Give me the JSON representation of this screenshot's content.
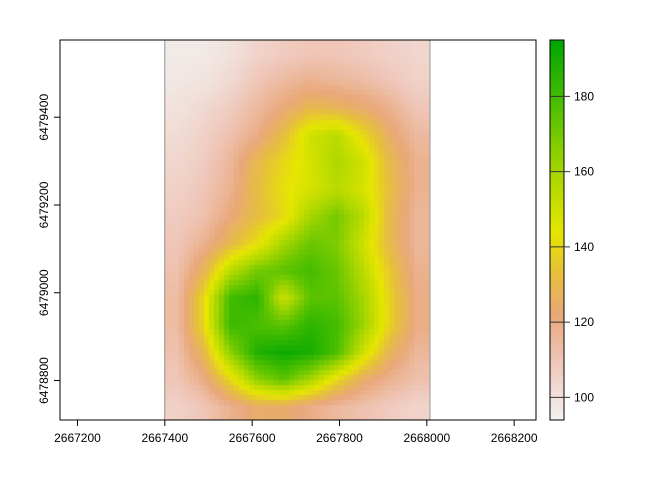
{
  "chart_data": {
    "type": "heatmap",
    "title": "",
    "xlabel": "",
    "ylabel": "",
    "xlim": [
      2667160,
      2668250
    ],
    "ylim": [
      6478710,
      6479576
    ],
    "raster_extent": {
      "xmin": 2667400,
      "xmax": 2668010,
      "ymin": 6478710,
      "ymax": 6479576
    },
    "x_ticks": [
      2667200,
      2667400,
      2667600,
      2667800,
      2668000,
      2668200
    ],
    "x_tick_labels": [
      "2667200",
      "2667400",
      "2667600",
      "2667800",
      "2668000",
      "2668200"
    ],
    "y_ticks": [
      6478800,
      6479000,
      6479200,
      6479400
    ],
    "y_tick_labels": [
      "6478800",
      "6479000",
      "6479200",
      "6479400"
    ],
    "legend": {
      "placement": "right",
      "range": [
        94,
        195
      ],
      "ticks": [
        100,
        120,
        140,
        160,
        180
      ],
      "tick_labels": [
        "100",
        "120",
        "140",
        "160",
        "180"
      ]
    },
    "color_stops": [
      {
        "value": 94,
        "color": "#f2f2f2"
      },
      {
        "value": 110,
        "color": "#efc6b8"
      },
      {
        "value": 122,
        "color": "#e9a87a"
      },
      {
        "value": 133,
        "color": "#e6bf3c"
      },
      {
        "value": 144,
        "color": "#e6e600"
      },
      {
        "value": 160,
        "color": "#a6d600"
      },
      {
        "value": 178,
        "color": "#4cbf00"
      },
      {
        "value": 195,
        "color": "#00a600"
      }
    ],
    "z_rows_top_to_bottom": [
      [
        97,
        97,
        100,
        105,
        108,
        110,
        110,
        108,
        106,
        104
      ],
      [
        98,
        99,
        103,
        110,
        115,
        118,
        116,
        114,
        110,
        106
      ],
      [
        100,
        103,
        108,
        115,
        122,
        130,
        128,
        124,
        118,
        110
      ],
      [
        102,
        106,
        112,
        120,
        132,
        150,
        155,
        140,
        125,
        115
      ],
      [
        104,
        108,
        116,
        130,
        140,
        148,
        158,
        150,
        130,
        118
      ],
      [
        106,
        110,
        118,
        132,
        142,
        148,
        155,
        148,
        132,
        118
      ],
      [
        108,
        112,
        122,
        132,
        140,
        160,
        170,
        155,
        130,
        116
      ],
      [
        110,
        118,
        130,
        142,
        160,
        172,
        168,
        150,
        130,
        116
      ],
      [
        112,
        128,
        155,
        170,
        175,
        180,
        172,
        155,
        135,
        118
      ],
      [
        114,
        140,
        180,
        185,
        150,
        175,
        175,
        160,
        138,
        120
      ],
      [
        114,
        140,
        182,
        178,
        175,
        185,
        180,
        162,
        138,
        120
      ],
      [
        112,
        130,
        165,
        188,
        192,
        190,
        178,
        150,
        128,
        116
      ],
      [
        110,
        120,
        140,
        165,
        175,
        160,
        140,
        125,
        118,
        112
      ],
      [
        106,
        110,
        118,
        125,
        125,
        120,
        115,
        112,
        108,
        105
      ]
    ]
  }
}
